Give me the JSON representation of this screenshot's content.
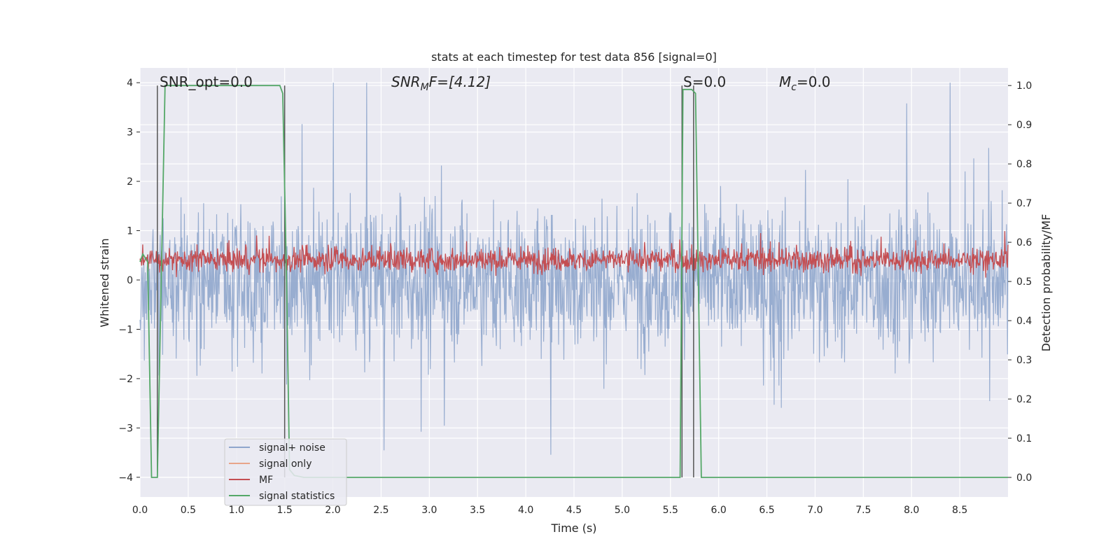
{
  "chart_data": {
    "type": "line",
    "title": "stats at each timestep for test data 856 [signal=0]",
    "xlabel": "Time (s)",
    "ylabel": "Whitened strain",
    "ylabel_right": "Detection probability/MF",
    "xlim": [
      0,
      9.0
    ],
    "ylim": [
      -4.4,
      4.3
    ],
    "ylim_right": [
      -0.05,
      1.045
    ],
    "x_ticks": [
      0.0,
      0.5,
      1.0,
      1.5,
      2.0,
      2.5,
      3.0,
      3.5,
      4.0,
      4.5,
      5.0,
      5.5,
      6.0,
      6.5,
      7.0,
      7.5,
      8.0,
      8.5
    ],
    "x_tick_labels": [
      "0.0",
      "0.5",
      "1.0",
      "1.5",
      "2.0",
      "2.5",
      "3.0",
      "3.5",
      "4.0",
      "4.5",
      "5.0",
      "5.5",
      "6.0",
      "6.5",
      "7.0",
      "7.5",
      "8.0",
      "8.5"
    ],
    "y_ticks": [
      -4,
      -3,
      -2,
      -1,
      0,
      1,
      2,
      3,
      4
    ],
    "y_tick_labels": [
      "−4",
      "−3",
      "−2",
      "−1",
      "0",
      "1",
      "2",
      "3",
      "4"
    ],
    "y_right_ticks": [
      0.0,
      0.1,
      0.2,
      0.3,
      0.4,
      0.5,
      0.6,
      0.7,
      0.8,
      0.9,
      1.0
    ],
    "y_right_tick_labels": [
      "0.0",
      "0.1",
      "0.2",
      "0.3",
      "0.4",
      "0.5",
      "0.6",
      "0.7",
      "0.8",
      "0.9",
      "1.0"
    ],
    "grid": true,
    "legend_position": "lower-left",
    "annotations": {
      "snr_opt": "SNR_opt=0.0",
      "snr_mf_prefix": "SNR",
      "snr_mf_sub": "M",
      "snr_mf_suffix": "F=[4.12]",
      "s": "S=0.0",
      "mc_prefix": "M",
      "mc_sub": "c",
      "mc_suffix": "=0.0"
    },
    "series": [
      {
        "name": "signal+ noise",
        "color": "#8fa6cc",
        "noise_amplitude": 4.0,
        "typical_range": [
          -1.6,
          1.6
        ]
      },
      {
        "name": "signal only",
        "color": "#e8a589",
        "values": []
      },
      {
        "name": "MF",
        "color": "#c44e52",
        "typical_range": [
          0.5,
          0.62
        ],
        "axis": "right"
      },
      {
        "name": "signal statistics",
        "color": "#55a868",
        "axis": "right",
        "x": [
          0.0,
          0.03,
          0.08,
          0.12,
          0.18,
          0.22,
          0.26,
          0.3,
          1.4,
          1.45,
          1.48,
          1.52,
          1.55,
          1.6,
          1.7,
          1.8,
          5.6,
          5.63,
          5.67,
          5.72,
          5.76,
          5.79,
          5.82,
          9.0
        ],
        "y": [
          0.55,
          0.57,
          0.55,
          0.0,
          0.0,
          0.5,
          1.0,
          1.0,
          1.0,
          1.0,
          0.98,
          0.5,
          0.02,
          0.005,
          0.0,
          0.0,
          0.0,
          0.99,
          0.99,
          0.99,
          0.98,
          0.5,
          0.0,
          0.0
        ]
      }
    ],
    "vertical_markers": {
      "color": "#555555",
      "x": [
        0.18,
        1.5,
        5.62,
        5.74
      ]
    }
  }
}
